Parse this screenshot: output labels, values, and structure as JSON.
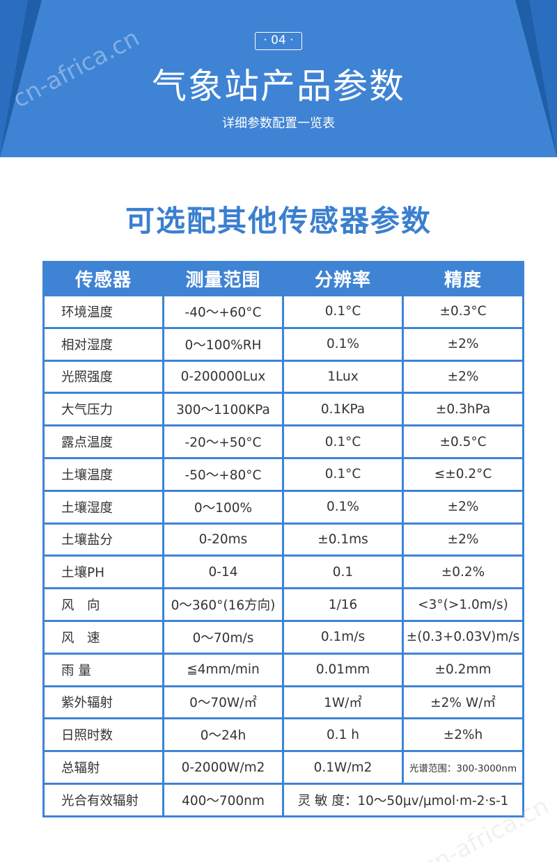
{
  "banner": {
    "badge": "· 04 ·",
    "title": "气象站产品参数",
    "subtitle": "详细参数配置一览表",
    "watermark": "cn-africa.cn"
  },
  "section_title": "可选配其他传感器参数",
  "table": {
    "headers": [
      "传感器",
      "测量范围",
      "分辨率",
      "精度"
    ],
    "rows": [
      [
        "环境温度",
        "-40～+60°C",
        "0.1°C",
        "±0.3°C"
      ],
      [
        "相对湿度",
        "0～100%RH",
        "0.1%",
        "±2%"
      ],
      [
        "光照强度",
        "0-200000Lux",
        "1Lux",
        "±2%"
      ],
      [
        "大气压力",
        "300～1100KPa",
        "0.1KPa",
        "±0.3hPa"
      ],
      [
        "露点温度",
        "-20～+50°C",
        "0.1°C",
        "±0.5°C"
      ],
      [
        "土壤温度",
        "-50～+80°C",
        "0.1°C",
        "≤±0.2°C"
      ],
      [
        "土壤湿度",
        "0～100%",
        "0.1%",
        "±2%"
      ],
      [
        "土壤盐分",
        "0-20ms",
        "±0.1ms",
        "±2%"
      ],
      [
        "土壤PH",
        "0-14",
        "0.1",
        "±0.2%"
      ],
      [
        "风　向",
        "0～360°(16方向)",
        "1/16",
        "<3°(>1.0m/s)"
      ],
      [
        "风　速",
        "0～70m/s",
        "0.1m/s",
        "±(0.3+0.03V)m/s"
      ],
      [
        "雨 量",
        "≦4mm/min",
        "0.01mm",
        "±0.2mm"
      ],
      [
        "紫外辐射",
        "0～70W/㎡",
        "1W/㎡",
        "±2% W/㎡"
      ],
      [
        "日照时数",
        "0～24h",
        "0.1 h",
        "±2%h"
      ],
      [
        "总辐射",
        "0-2000W/m2",
        "0.1W/m2",
        "光谱范围：300-3000nm"
      ]
    ],
    "last_row": {
      "name": "光合有效辐射",
      "range": "400～700nm",
      "merged": "灵 敏 度：10～50μv/μmol·m-2·s-1"
    }
  }
}
